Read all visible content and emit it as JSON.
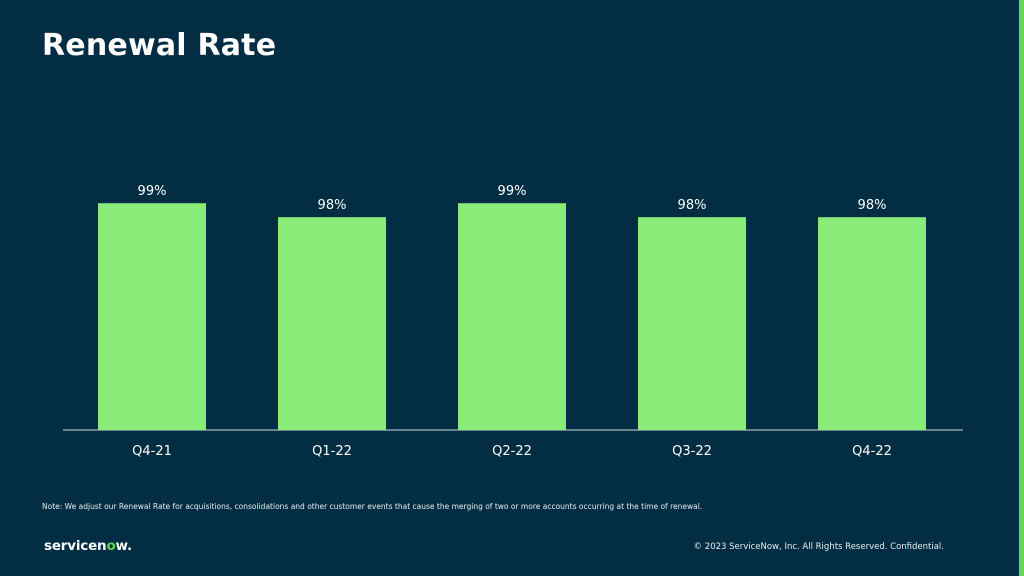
{
  "slide": {
    "title": "Renewal Rate",
    "note": "Note: We adjust our Renewal Rate for acquisitions, consolidations and other customer events that cause the merging of two or more accounts occurring at the time of renewal.",
    "logo_text": "servicenow.",
    "copyright": "© 2023 ServiceNow, Inc. All Rights Reserved. Confidential."
  },
  "colors": {
    "background": "#032D42",
    "bar": "#89EC79",
    "accent": "#62D84E",
    "text": "#FFFFFF",
    "axis_line": "#D0D6DA"
  },
  "chart_data": {
    "type": "bar",
    "title": "Renewal Rate",
    "categories": [
      "Q4-21",
      "Q1-22",
      "Q2-22",
      "Q3-22",
      "Q4-22"
    ],
    "values": [
      99,
      98,
      99,
      98,
      98
    ],
    "value_labels": [
      "99%",
      "98%",
      "99%",
      "98%",
      "98%"
    ],
    "unit": "%",
    "xlabel": "",
    "ylabel": "",
    "grid": false,
    "legend": "none"
  }
}
